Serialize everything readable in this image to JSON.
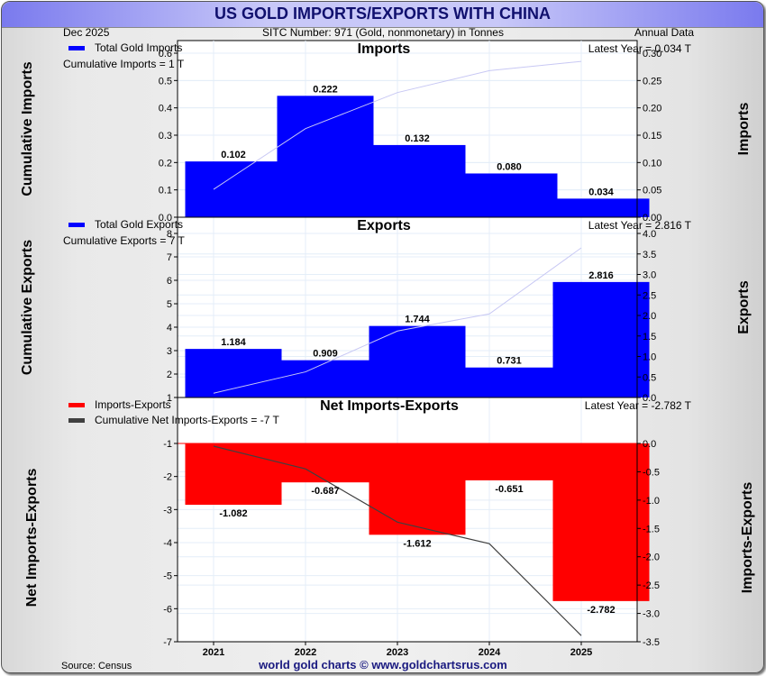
{
  "header": {
    "title": "US GOLD IMPORTS/EXPORTS WITH CHINA",
    "date": "Dec  2025",
    "subtitle": "SITC Number: 971 (Gold, nonmonetary) in Tonnes",
    "frequency": "Annual Data"
  },
  "footer": {
    "source": "Source: Census",
    "site": "world gold charts © www.goldchartsrus.com"
  },
  "colors": {
    "imports": "#0000ff",
    "exports": "#0000ff",
    "net": "#ff0000",
    "cumulative_line_light": "#c8c8f4",
    "cumulative_net_line": "#404040",
    "grid": "#e4eef8"
  },
  "chart_data": [
    {
      "type": "bar",
      "title": "Imports",
      "categories": [
        "2021",
        "2022",
        "2023",
        "2024",
        "2025"
      ],
      "series": [
        {
          "name": "Total Gold Imports",
          "axis": "right",
          "values": [
            0.102,
            0.222,
            0.132,
            0.08,
            0.034
          ],
          "labels": [
            "0.102",
            "0.222",
            "0.132",
            "0.080",
            "0.034"
          ]
        },
        {
          "name": "Cumulative Imports",
          "axis": "left",
          "type": "line",
          "values": [
            0.102,
            0.324,
            0.456,
            0.536,
            0.57
          ]
        }
      ],
      "legend": "Total Gold Imports",
      "annotation_left": "Cumulative Imports = 1 T",
      "annotation_right": "Latest Year = 0.034 T",
      "ylabel_left": "Cumulative Imports",
      "ylabel_right": "Imports",
      "ylim_left": [
        0,
        0.6
      ],
      "ylim_right": [
        0,
        0.3
      ],
      "yticks_left": [
        "0.0",
        "0.1",
        "0.2",
        "0.3",
        "0.4",
        "0.5",
        "0.6"
      ],
      "yticks_right": [
        "0.00",
        "0.05",
        "0.10",
        "0.15",
        "0.20",
        "0.25",
        "0.30"
      ],
      "grid": true
    },
    {
      "type": "bar",
      "title": "Exports",
      "categories": [
        "2021",
        "2022",
        "2023",
        "2024",
        "2025"
      ],
      "series": [
        {
          "name": "Total Gold Exports",
          "axis": "right",
          "values": [
            1.184,
            0.909,
            1.744,
            0.731,
            2.816
          ],
          "labels": [
            "1.184",
            "0.909",
            "1.744",
            "0.731",
            "2.816"
          ]
        },
        {
          "name": "Cumulative Exports",
          "axis": "left",
          "type": "line",
          "values": [
            1.184,
            2.093,
            3.837,
            4.568,
            7.384
          ]
        }
      ],
      "legend": "Total Gold Exports",
      "annotation_left": "Cumulative Exports = 7 T",
      "annotation_right": "Latest Year = 2.816 T",
      "ylabel_left": "Cumulative Exports",
      "ylabel_right": "Exports",
      "ylim_left": [
        1,
        8
      ],
      "ylim_right": [
        0,
        4.0
      ],
      "yticks_left": [
        "1",
        "2",
        "3",
        "4",
        "5",
        "6",
        "7",
        "8"
      ],
      "yticks_right": [
        "0.0",
        "0.5",
        "1.0",
        "1.5",
        "2.0",
        "2.5",
        "3.0",
        "3.5",
        "4.0"
      ],
      "grid": true
    },
    {
      "type": "bar",
      "title": "Net Imports-Exports",
      "categories": [
        "2021",
        "2022",
        "2023",
        "2024",
        "2025"
      ],
      "series": [
        {
          "name": "Imports-Exports",
          "axis": "right",
          "values": [
            -1.082,
            -0.687,
            -1.612,
            -0.651,
            -2.782
          ],
          "labels": [
            "-1.082",
            "-0.687",
            "-1.612",
            "-0.651",
            "-2.782"
          ]
        },
        {
          "name": "Cumulative Net Imports-Exports",
          "axis": "left",
          "type": "line",
          "values": [
            -1.082,
            -1.769,
            -3.381,
            -4.032,
            -6.814
          ]
        }
      ],
      "legend": [
        "Imports-Exports",
        "Cumulative Net Imports-Exports = -7 T"
      ],
      "annotation_right": "Latest Year = -2.782 T",
      "ylabel_left": "Net Imports-Exports",
      "ylabel_right": "Imports-Exports",
      "ylim_left": [
        -7,
        -1
      ],
      "ylim_right": [
        -3.5,
        0
      ],
      "yticks_left": [
        "-7",
        "-6",
        "-5",
        "-4",
        "-3",
        "-2",
        "-1"
      ],
      "yticks_right": [
        "-3.5",
        "-3.0",
        "-2.5",
        "-2.0",
        "-1.5",
        "-1.0",
        "-0.5",
        "0.0"
      ],
      "xticks": [
        "2021",
        "2022",
        "2023",
        "2024",
        "2025"
      ],
      "grid": true
    }
  ]
}
